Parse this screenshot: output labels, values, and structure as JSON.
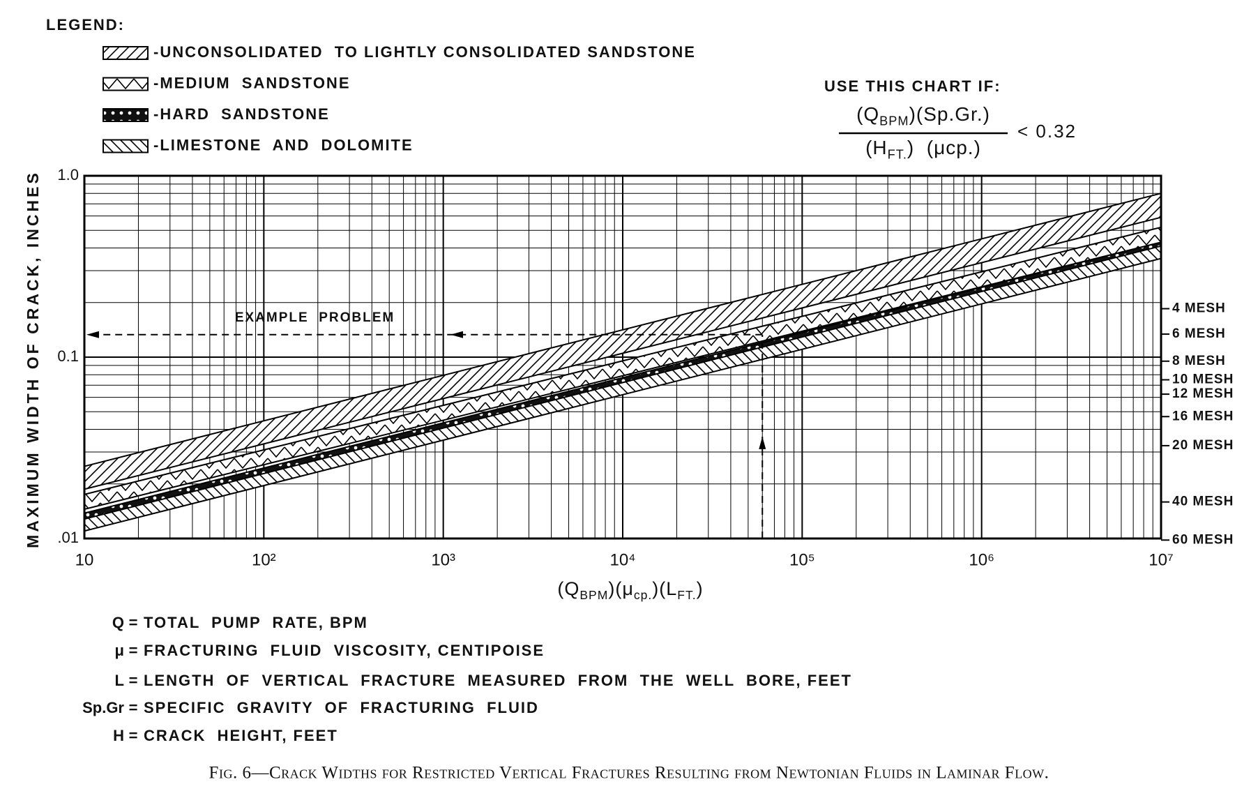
{
  "chart_data": {
    "type": "band",
    "legend_title": "LEGEND:",
    "condition": {
      "title": "USE THIS CHART IF:",
      "numerator": [
        "(Q",
        "BPM",
        ")(Sp.Gr.)"
      ],
      "denominator": [
        "(H",
        "FT.",
        ")  (μcp.)"
      ],
      "inequality": "< 0.32"
    },
    "x_label": [
      "(Q",
      "BPM",
      ")(μ",
      "cp.",
      ")(L",
      "FT.",
      ")"
    ],
    "y_label": "MAXIMUM WIDTH OF CRACK, INCHES",
    "xscale": "log",
    "yscale": "log",
    "grid": true,
    "xlim": [
      10,
      10000000
    ],
    "ylim": [
      0.01,
      1
    ],
    "xticks": [
      10,
      {
        "value": 100,
        "label": "10²"
      },
      {
        "value": 1000,
        "label": "10³"
      },
      {
        "value": 10000,
        "label": "10⁴"
      },
      {
        "value": 100000,
        "label": "10⁵"
      },
      {
        "value": 1000000,
        "label": "10⁶"
      },
      {
        "value": 10000000,
        "label": "10⁷"
      }
    ],
    "yticks": [
      {
        "value": 0.01,
        "label": ".01"
      },
      0.1,
      {
        "value": 1,
        "label": "1.0"
      }
    ],
    "y2lim": [
      0.01,
      1
    ],
    "y2ticks": [
      {
        "value": 0.185,
        "label": "4 MESH"
      },
      {
        "value": 0.134,
        "label": "6 MESH"
      },
      {
        "value": 0.095,
        "label": "8 MESH"
      },
      {
        "value": 0.075,
        "label": "10 MESH"
      },
      {
        "value": 0.0625,
        "label": "12 MESH"
      },
      {
        "value": 0.047,
        "label": "16 MESH"
      },
      {
        "value": 0.0325,
        "label": "20 MESH"
      },
      {
        "value": 0.0159,
        "label": "40 MESH"
      },
      {
        "value": 0.0098,
        "label": "60 MESH"
      }
    ],
    "series": [
      {
        "name": "-UNCONSOLIDATED  TO LIGHTLY CONSOLIDATED SANDSTONE",
        "pattern": "hatch",
        "color": "#000000",
        "x": [
          10,
          10000000
        ],
        "upper": [
          0.025,
          0.8
        ],
        "lower": [
          0.0187,
          0.59
        ]
      },
      {
        "name": "-MEDIUM  SANDSTONE",
        "pattern": "zigzag",
        "color": "#000000",
        "x": [
          10,
          10000000
        ],
        "upper": [
          0.0175,
          0.52
        ],
        "lower": [
          0.0145,
          0.43
        ]
      },
      {
        "name": "-HARD  SANDSTONE",
        "pattern": "dots",
        "color": "#000000",
        "x": [
          10,
          10000000
        ],
        "upper": [
          0.0138,
          0.43
        ],
        "lower": [
          0.0125,
          0.38
        ]
      },
      {
        "name": "-LIMESTONE  AND  DOLOMITE",
        "pattern": "backhatch",
        "color": "#000000",
        "x": [
          10,
          10000000
        ],
        "upper": [
          0.0128,
          0.41
        ],
        "lower": [
          0.011,
          0.35
        ]
      }
    ],
    "annotation": {
      "label": "EXAMPLE  PROBLEM",
      "x": 60000,
      "y": 0.133
    },
    "definitions": [
      {
        "symbol": "Q",
        "text": "TOTAL  PUMP  RATE, BPM"
      },
      {
        "symbol": "μ",
        "text": "FRACTURING  FLUID  VISCOSITY, CENTIPOISE"
      },
      {
        "symbol": "L",
        "text": "LENGTH  OF  VERTICAL  FRACTURE  MEASURED  FROM  THE  WELL  BORE, FEET"
      },
      {
        "symbol": "Sp.Gr",
        "text": "SPECIFIC  GRAVITY  OF  FRACTURING  FLUID"
      },
      {
        "symbol": "H",
        "text": "CRACK  HEIGHT, FEET"
      }
    ],
    "caption": "Fig. 6—Crack Widths for Restricted Vertical Fractures Resulting from Newtonian Fluids in Laminar Flow."
  }
}
